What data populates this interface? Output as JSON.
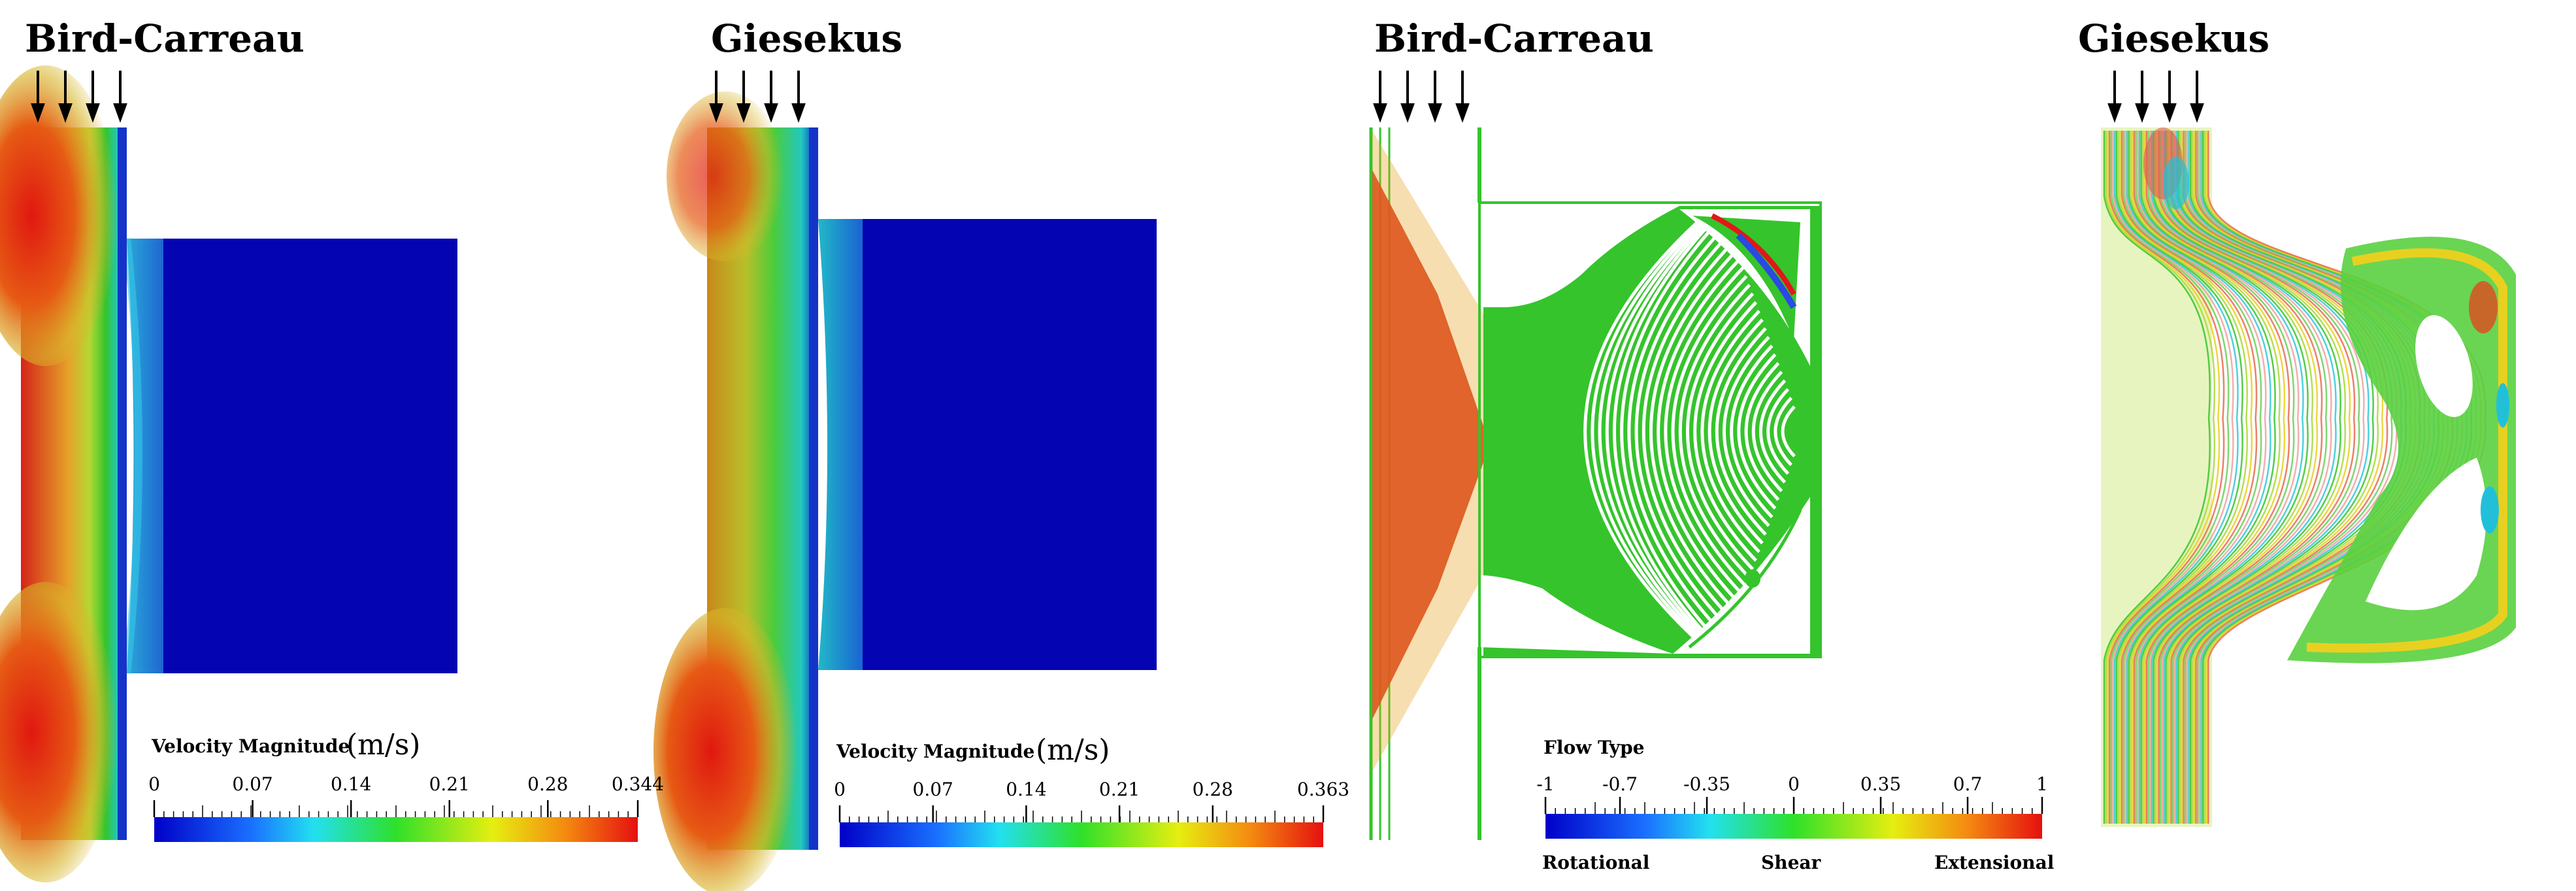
{
  "panels": [
    {
      "title": "Bird-Carreau"
    },
    {
      "title": "Giesekus"
    },
    {
      "title": "Bird-Carreau"
    },
    {
      "title": "Giesekus"
    }
  ],
  "colorbars": [
    {
      "title": "Velocity Magnitude",
      "unit": "(m/s)",
      "min": 0,
      "max": 0.344,
      "ticks": [
        "0",
        "0.07",
        "0.14",
        "0.21",
        "0.28",
        "0.344"
      ]
    },
    {
      "title": "Velocity Magnitude",
      "unit": "(m/s)",
      "min": 0,
      "max": 0.363,
      "ticks": [
        "0",
        "0.07",
        "0.14",
        "0.21",
        "0.28",
        "0.363"
      ]
    },
    {
      "title": "Flow Type",
      "min": -1,
      "max": 1,
      "ticks": [
        "-1",
        "-0.7",
        "-0.35",
        "0",
        "0.35",
        "0.7",
        "1"
      ],
      "end_labels": [
        "Rotational",
        "Shear",
        "Extensional"
      ]
    }
  ],
  "colors": {
    "red": "#e31a1c",
    "orange": "#f4a020",
    "yellow": "#e8e619",
    "green": "#35c42c",
    "cyan": "#20d0d0",
    "blue": "#0a0abf",
    "deepblue": "#0000b0"
  }
}
